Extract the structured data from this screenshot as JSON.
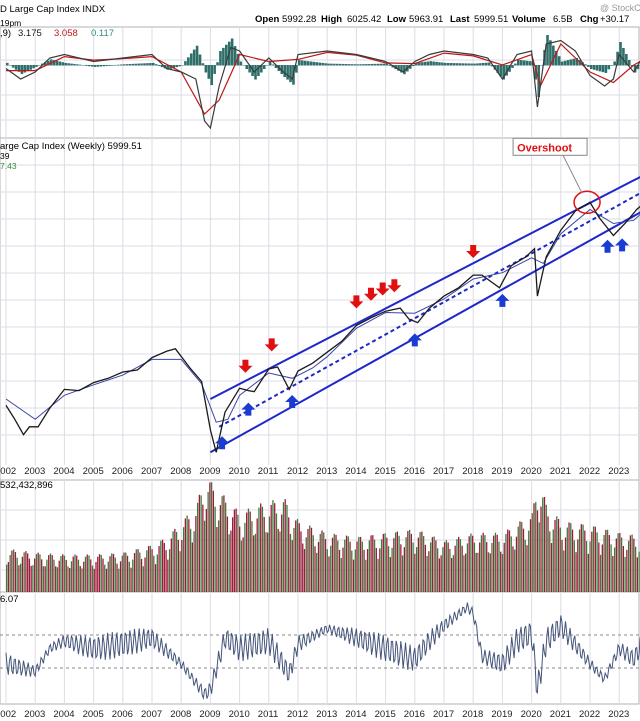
{
  "header": {
    "symbol": "D Large Cap Index INDX",
    "open_label": "Open",
    "open": "5992.28",
    "high_label": "High",
    "high": "6025.42",
    "low_label": "Low",
    "low": "5963.91",
    "last_label": "Last",
    "last": "5999.51",
    "volume_label": "Volume",
    "volume": "6.5B",
    "chg_label": "Chg",
    "chg": "+30.17",
    "watermark": "@ StockC",
    "time_fragment": "19pm"
  },
  "colors": {
    "price_line": "#1a1a1a",
    "ma_line": "#3a44a8",
    "channel": "#1e28c8",
    "down_arrow": "#e01010",
    "up_arrow": "#1a3cd0",
    "overshoot": "#e01010",
    "volume_down": "#9c1b3a",
    "volume_up": "#3f7a3a",
    "macd_hist": "#2f6f6a",
    "macd_line": "#3a3a3a",
    "macd_signal": "#c01818",
    "rsi_line": "#45557a",
    "grid": "#dcdce6"
  },
  "chart_data": [
    {
      "type": "line",
      "panel": "macd",
      "label_prefix": ",9)",
      "label_values": [
        "3.175",
        "3.058",
        "0.117"
      ],
      "label_colors": [
        "#1a1a1a",
        "#c01818",
        "#2f8f80"
      ],
      "series": [
        {
          "name": "MACD",
          "x": [
            2002,
            2002.5,
            2003,
            2003.5,
            2004,
            2005,
            2006,
            2007,
            2007.5,
            2008,
            2008.5,
            2008.8,
            2009,
            2009.3,
            2009.7,
            2010,
            2010.5,
            2011,
            2011.5,
            2011.8,
            2012,
            2013,
            2014,
            2014.5,
            2015,
            2015.6,
            2016,
            2016.5,
            2017,
            2018,
            2018.5,
            2019,
            2019.5,
            2020,
            2020.2,
            2020.5,
            2021,
            2021.5,
            2022,
            2022.5,
            2022.8,
            2023,
            2023.5,
            2024,
            2024.5,
            2024.9
          ],
          "values": [
            -0.5,
            -2,
            -1,
            1,
            1.5,
            0.5,
            1,
            1.5,
            -0.5,
            -1,
            -2,
            -8,
            -9,
            -3,
            2.5,
            2,
            -1,
            1,
            -1,
            -2,
            1.5,
            2,
            1.5,
            1,
            0.5,
            -1,
            0.5,
            1.5,
            2,
            1.5,
            1,
            -2,
            1.5,
            2,
            -6,
            3,
            3.5,
            2,
            -1.5,
            -3,
            -2,
            1.5,
            -1,
            2.5,
            2,
            3.2
          ]
        },
        {
          "name": "Signal",
          "x": [
            2002,
            2003,
            2004,
            2005,
            2006,
            2007,
            2008,
            2008.8,
            2009.3,
            2010,
            2011,
            2012,
            2013,
            2014,
            2015,
            2016,
            2017,
            2018,
            2019,
            2020,
            2020.3,
            2021,
            2022,
            2022.8,
            2023.5,
            2024.9
          ],
          "values": [
            -0.8,
            -0.8,
            1.2,
            0.7,
            0.9,
            1.2,
            -1,
            -7,
            -5,
            1.5,
            0.5,
            0.8,
            1.8,
            1.4,
            0.3,
            0.2,
            1.7,
            1.3,
            0,
            1.5,
            -3,
            3,
            -1,
            -2.5,
            0,
            3.1
          ]
        }
      ],
      "ylim": [
        -10,
        5
      ]
    },
    {
      "type": "line",
      "panel": "price",
      "title": "arge Cap Index (Weekly) 5999.51",
      "legend_lines": [
        "39",
        "7.43"
      ],
      "x_ticks": [
        "2002",
        "2003",
        "2004",
        "2005",
        "2006",
        "2007",
        "2008",
        "2009",
        "2010",
        "2011",
        "2012",
        "2013",
        "2014",
        "2015",
        "2016",
        "2017",
        "2018",
        "2019",
        "2020",
        "2021",
        "2022",
        "2023"
      ],
      "series": [
        {
          "name": "",
          "x": [
            2002,
            2002.3,
            2002.6,
            2002.8,
            2003.1,
            2003.5,
            2004,
            2004.5,
            2005,
            2005.5,
            2006,
            2006.5,
            2007,
            2007.5,
            2007.8,
            2008.3,
            2008.7,
            2009.0,
            2009.2,
            2009.5,
            2010,
            2010.3,
            2010.5,
            2011,
            2011.3,
            2011.7,
            2012,
            2012.5,
            2013,
            2013.5,
            2014,
            2014.5,
            2015,
            2015.5,
            2015.8,
            2016.1,
            2016.5,
            2017,
            2017.5,
            2018,
            2018.3,
            2018.9,
            2019.3,
            2019.8,
            2020.1,
            2020.2,
            2020.5,
            2021,
            2021.5,
            2022,
            2022.3,
            2022.8,
            2023.2,
            2023.6,
            2024,
            2024.5,
            2024.9
          ],
          "values": [
            1000,
            900,
            800,
            850,
            850,
            980,
            1130,
            1120,
            1190,
            1230,
            1290,
            1310,
            1440,
            1510,
            1540,
            1330,
            1200,
            830,
            700,
            950,
            1140,
            1120,
            1110,
            1320,
            1340,
            1130,
            1300,
            1380,
            1500,
            1630,
            1840,
            1950,
            2050,
            2100,
            1930,
            1880,
            2100,
            2300,
            2450,
            2700,
            2700,
            2450,
            2900,
            3100,
            3300,
            2300,
            3100,
            3800,
            4400,
            4700,
            4200,
            3650,
            4000,
            4450,
            4800,
            5400,
            5999.51
          ]
        },
        {
          "name": "",
          "x": [
            2002,
            2003,
            2004,
            2005,
            2006,
            2007,
            2008,
            2008.7,
            2009.2,
            2009.6,
            2010,
            2011,
            2011.8,
            2012.5,
            2013,
            2014,
            2015,
            2016,
            2017,
            2018,
            2019,
            2020,
            2020.4,
            2021,
            2022,
            2022.8,
            2023.5,
            2024.5,
            2024.9
          ],
          "values": [
            1050,
            900,
            1080,
            1170,
            1260,
            1420,
            1420,
            1180,
            880,
            900,
            1080,
            1280,
            1230,
            1330,
            1450,
            1800,
            2030,
            2020,
            2250,
            2620,
            2750,
            3080,
            2950,
            3700,
            4450,
            4000,
            4100,
            5000,
            5600
          ]
        }
      ],
      "channel": {
        "upper": {
          "x": [
            2009.0,
            2025.0
          ],
          "values": [
            1050,
            6600
          ]
        },
        "lower": {
          "x": [
            2009.0,
            2025.0
          ],
          "values": [
            700,
            5100
          ]
        },
        "middle_dashed": {
          "x": [
            2009.3,
            2025.0
          ],
          "values": [
            850,
            5900
          ]
        }
      },
      "annotations": [
        {
          "text": "Overshoot",
          "x": 2021.9,
          "y": 4700
        }
      ],
      "down_arrows_x": [
        2010.2,
        2011.1,
        2014.0,
        2014.5,
        2014.9,
        2015.3,
        2018.0
      ],
      "up_arrows_x": [
        2009.4,
        2010.3,
        2011.8,
        2016.0,
        2019.0,
        2022.6,
        2023.1
      ]
    },
    {
      "type": "bar",
      "panel": "volume",
      "title": "532,432,896",
      "x": [
        2002,
        2003,
        2004,
        2005,
        2006,
        2007,
        2007.5,
        2008,
        2008.5,
        2008.8,
        2009,
        2009.5,
        2010,
        2010.5,
        2011,
        2011.5,
        2012,
        2013,
        2014,
        2015,
        2016,
        2017,
        2018,
        2019,
        2020,
        2020.2,
        2020.5,
        2021,
        2022,
        2023,
        2024,
        2024.9
      ],
      "values": [
        1.1,
        1.0,
        0.95,
        0.95,
        1.0,
        1.2,
        1.4,
        1.8,
        2.2,
        3.0,
        2.8,
        2.4,
        2.0,
        2.2,
        2.3,
        2.4,
        1.8,
        1.5,
        1.4,
        1.5,
        1.6,
        1.3,
        1.5,
        1.5,
        2.0,
        3.0,
        2.2,
        1.8,
        1.7,
        1.5,
        1.4,
        1.4
      ],
      "ylim": [
        0,
        3.2
      ]
    },
    {
      "type": "line",
      "panel": "rsi",
      "title": "6.07",
      "x": [
        2002,
        2003,
        2003.5,
        2004,
        2005,
        2006,
        2007,
        2008,
        2008.8,
        2009,
        2009.5,
        2010,
        2011,
        2011.7,
        2012,
        2013,
        2014,
        2015,
        2016,
        2016.5,
        2017,
        2017.8,
        2018,
        2018.3,
        2019,
        2019.5,
        2020,
        2020.2,
        2020.5,
        2021,
        2022,
        2022.5,
        2023,
        2023.5,
        2024,
        2024.9
      ],
      "values": [
        45,
        40,
        55,
        60,
        55,
        58,
        62,
        45,
        25,
        28,
        62,
        55,
        60,
        38,
        58,
        68,
        62,
        55,
        48,
        60,
        70,
        82,
        78,
        50,
        45,
        60,
        65,
        28,
        60,
        70,
        45,
        35,
        55,
        48,
        66,
        60
      ],
      "ylim": [
        20,
        90
      ]
    }
  ]
}
